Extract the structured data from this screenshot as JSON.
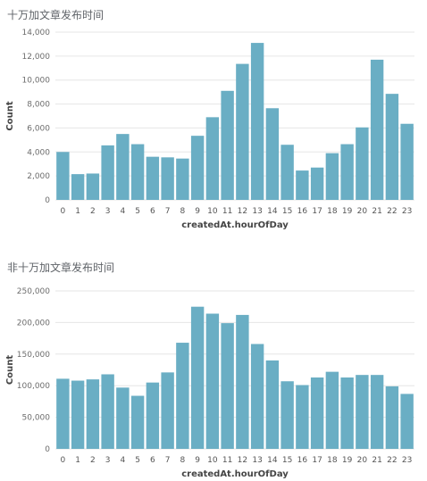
{
  "chart_data": [
    {
      "type": "bar",
      "title": "十万加文章发布时间",
      "xlabel": "createdAt.hourOfDay",
      "ylabel": "Count",
      "categories": [
        "0",
        "1",
        "2",
        "3",
        "4",
        "5",
        "6",
        "7",
        "8",
        "9",
        "10",
        "11",
        "12",
        "13",
        "14",
        "15",
        "16",
        "17",
        "18",
        "19",
        "20",
        "21",
        "22",
        "23"
      ],
      "values": [
        4000,
        2150,
        2200,
        4550,
        5500,
        4650,
        3600,
        3550,
        3450,
        5350,
        6900,
        9100,
        11350,
        13100,
        7650,
        4600,
        2450,
        2700,
        3900,
        4650,
        6050,
        11700,
        8850,
        6350
      ],
      "ylim": [
        0,
        14000
      ],
      "yticks": [
        0,
        2000,
        4000,
        6000,
        8000,
        10000,
        12000,
        14000
      ],
      "ytick_labels": [
        "0",
        "2,000",
        "4,000",
        "6,000",
        "8,000",
        "10,000",
        "12,000",
        "14,000"
      ],
      "grid": true,
      "color": "#6aaec4"
    },
    {
      "type": "bar",
      "title": "非十万加文章发布时间",
      "xlabel": "createdAt.hourOfDay",
      "ylabel": "Count",
      "categories": [
        "0",
        "1",
        "2",
        "3",
        "4",
        "5",
        "6",
        "7",
        "8",
        "9",
        "10",
        "11",
        "12",
        "13",
        "14",
        "15",
        "16",
        "17",
        "18",
        "19",
        "20",
        "21",
        "22",
        "23"
      ],
      "values": [
        111000,
        108000,
        110000,
        118000,
        97000,
        84000,
        105000,
        121000,
        168000,
        225000,
        214000,
        199000,
        212000,
        166000,
        140000,
        107000,
        101000,
        113000,
        122000,
        113000,
        117000,
        117000,
        99000,
        87000
      ],
      "ylim": [
        0,
        250000
      ],
      "yticks": [
        0,
        50000,
        100000,
        150000,
        200000,
        250000
      ],
      "ytick_labels": [
        "0",
        "50,000",
        "100,000",
        "150,000",
        "200,000",
        "250,000"
      ],
      "grid": true,
      "color": "#6aaec4"
    }
  ]
}
